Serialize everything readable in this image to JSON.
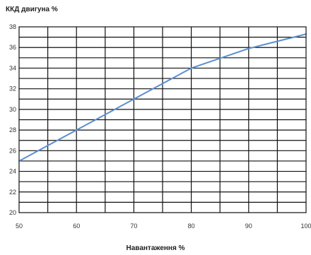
{
  "chart_data": {
    "type": "line",
    "title": "",
    "ylabel": "ККД двигуна %",
    "xlabel": "Навантаження %",
    "xlim": [
      50,
      100
    ],
    "ylim": [
      20,
      38
    ],
    "x_ticks": [
      50,
      60,
      70,
      80,
      90,
      100
    ],
    "y_ticks": [
      20,
      22,
      24,
      26,
      28,
      30,
      32,
      34,
      36,
      38
    ],
    "grid": true,
    "series": [
      {
        "color": "#5b8fd1",
        "x": [
          50,
          60,
          70,
          80,
          90,
          100
        ],
        "y": [
          25.0,
          28.0,
          31.0,
          34.0,
          35.9,
          37.3
        ]
      }
    ]
  }
}
